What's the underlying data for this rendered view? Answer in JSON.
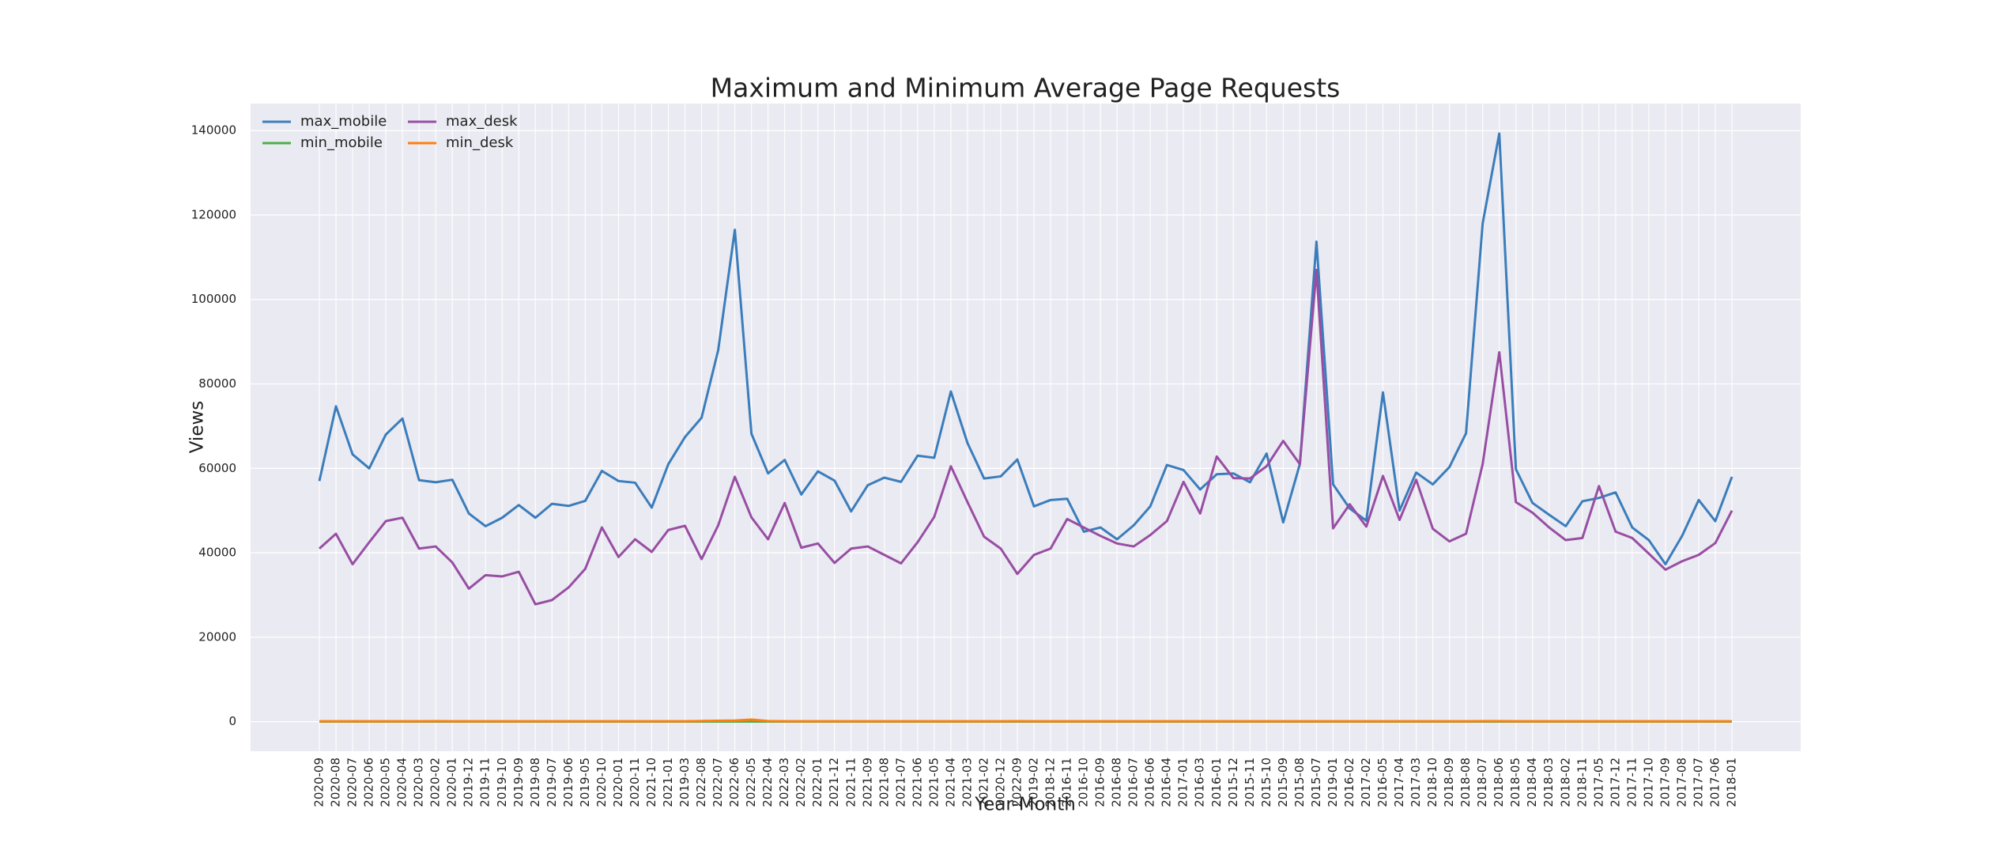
{
  "chart_data": {
    "type": "line",
    "title": "Maximum and Minimum Average Page Requests",
    "x_label": "Year-Month",
    "y_label": "Views",
    "categories": [
      "2020-09",
      "2020-08",
      "2020-07",
      "2020-06",
      "2020-05",
      "2020-04",
      "2020-03",
      "2020-02",
      "2020-01",
      "2019-12",
      "2019-11",
      "2019-10",
      "2019-09",
      "2019-08",
      "2019-07",
      "2019-06",
      "2019-05",
      "2020-10",
      "2020-01",
      "2020-11",
      "2021-10",
      "2021-01",
      "2019-03",
      "2022-08",
      "2022-07",
      "2022-06",
      "2022-05",
      "2022-04",
      "2022-03",
      "2022-02",
      "2022-01",
      "2021-12",
      "2021-11",
      "2021-09",
      "2021-08",
      "2021-07",
      "2021-06",
      "2021-05",
      "2021-04",
      "2021-03",
      "2021-02",
      "2020-12",
      "2022-09",
      "2019-02",
      "2018-12",
      "2016-11",
      "2016-10",
      "2016-09",
      "2016-08",
      "2016-07",
      "2016-06",
      "2016-04",
      "2017-01",
      "2016-03",
      "2016-01",
      "2015-12",
      "2015-11",
      "2015-10",
      "2015-09",
      "2015-08",
      "2015-07",
      "2019-01",
      "2016-02",
      "2017-02",
      "2016-05",
      "2017-04",
      "2017-03",
      "2018-10",
      "2018-09",
      "2018-08",
      "2018-07",
      "2018-06",
      "2018-05",
      "2018-04",
      "2018-03",
      "2018-02",
      "2018-11",
      "2017-05",
      "2017-12",
      "2017-11",
      "2017-10",
      "2017-09",
      "2017-08",
      "2017-07",
      "2017-06",
      "2018-01"
    ],
    "series": [
      {
        "name": "max_mobile",
        "color": "#3b7dbb",
        "values": [
          57000,
          74700,
          63300,
          60000,
          68000,
          71800,
          57200,
          56700,
          57300,
          49300,
          46300,
          48300,
          51300,
          48300,
          51600,
          51100,
          52300,
          59400,
          57000,
          56600,
          50700,
          61000,
          67400,
          72000,
          88000,
          116500,
          68200,
          58800,
          62000,
          53800,
          59300,
          57100,
          49800,
          56000,
          57800,
          56800,
          63000,
          62500,
          78200,
          66000,
          57600,
          58100,
          62100,
          51000,
          52500,
          52800,
          45000,
          46000,
          43200,
          46500,
          51000,
          60800,
          59600,
          55000,
          58600,
          58800,
          56700,
          63500,
          47200,
          61000,
          113700,
          56200,
          50500,
          47600,
          78000,
          50000,
          59000,
          56200,
          60300,
          68300,
          118000,
          139300,
          59800,
          51800,
          49000,
          46300,
          52200,
          53000,
          54300,
          46000,
          43000,
          37300,
          44000,
          52500,
          47500,
          58000
        ]
      },
      {
        "name": "min_mobile",
        "color": "#4daf4a",
        "values": [
          20,
          20,
          20,
          20,
          20,
          20,
          20,
          20,
          20,
          20,
          20,
          20,
          20,
          20,
          20,
          20,
          20,
          20,
          20,
          20,
          20,
          20,
          20,
          20,
          20,
          20,
          20,
          20,
          20,
          20,
          20,
          20,
          20,
          20,
          20,
          20,
          20,
          20,
          20,
          20,
          20,
          20,
          20,
          20,
          20,
          20,
          20,
          20,
          20,
          20,
          20,
          20,
          20,
          20,
          20,
          20,
          20,
          20,
          20,
          20,
          20,
          20,
          20,
          20,
          20,
          20,
          20,
          20,
          20,
          20,
          20,
          20,
          20,
          20,
          20,
          20,
          20,
          20,
          20,
          20,
          20,
          20,
          20,
          20,
          20,
          20
        ]
      },
      {
        "name": "max_desk",
        "color": "#984ea3",
        "values": [
          41000,
          44500,
          37300,
          42500,
          47500,
          48300,
          41000,
          41500,
          37700,
          31500,
          34700,
          34400,
          35500,
          27800,
          28800,
          31800,
          36200,
          46000,
          39000,
          43200,
          40200,
          45400,
          46400,
          38500,
          46500,
          58000,
          48400,
          43200,
          51800,
          41200,
          42200,
          37600,
          41000,
          41500,
          39500,
          37500,
          42500,
          48500,
          60500,
          52000,
          43800,
          41000,
          35000,
          39500,
          41000,
          48000,
          46000,
          44000,
          42200,
          41500,
          44200,
          47500,
          56800,
          49300,
          62800,
          57700,
          57600,
          60500,
          66500,
          61000,
          107000,
          45800,
          51500,
          46200,
          58200,
          47800,
          57300,
          45700,
          42700,
          44500,
          61000,
          87500,
          52000,
          49500,
          46000,
          43000,
          43500,
          55800,
          45000,
          43500,
          39800,
          36000,
          38000,
          39500,
          42300,
          50000
        ]
      },
      {
        "name": "min_desk",
        "color": "#ff7f0e",
        "values": [
          100,
          100,
          100,
          100,
          100,
          100,
          100,
          120,
          100,
          100,
          100,
          100,
          100,
          100,
          100,
          100,
          100,
          100,
          100,
          100,
          100,
          100,
          100,
          150,
          200,
          250,
          500,
          150,
          100,
          100,
          100,
          100,
          100,
          100,
          100,
          100,
          100,
          100,
          100,
          100,
          100,
          100,
          120,
          100,
          100,
          100,
          100,
          100,
          100,
          100,
          100,
          100,
          100,
          100,
          100,
          100,
          100,
          100,
          100,
          100,
          100,
          100,
          100,
          100,
          100,
          100,
          100,
          100,
          100,
          100,
          120,
          120,
          100,
          100,
          100,
          100,
          100,
          100,
          100,
          100,
          100,
          100,
          100,
          100,
          100,
          100
        ]
      }
    ],
    "ylim": [
      -7000,
      146400
    ],
    "yticks": [
      0,
      20000,
      40000,
      60000,
      80000,
      100000,
      120000,
      140000
    ],
    "grid": true,
    "legend": "upper left",
    "background": "#eaeaf2"
  }
}
